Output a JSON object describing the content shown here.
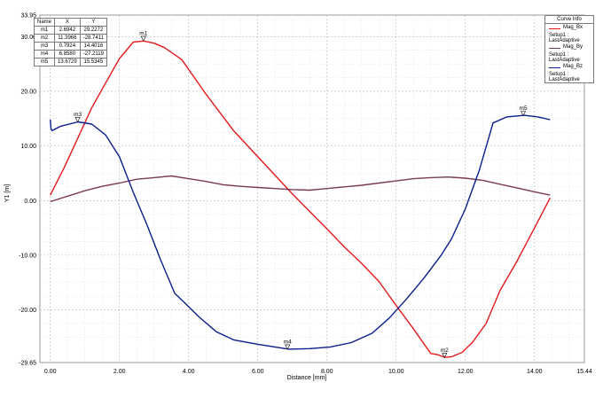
{
  "chart_data": {
    "type": "line",
    "xlabel": "Distance [mm]",
    "ylabel": "Y1 [m]",
    "xlim": [
      -0.3,
      15.44
    ],
    "ylim": [
      -29.65,
      33.95
    ],
    "x_ticks": [
      {
        "v": 0,
        "label": "0.00"
      },
      {
        "v": 2,
        "label": "2.00"
      },
      {
        "v": 4,
        "label": "4.00"
      },
      {
        "v": 6,
        "label": "6.00"
      },
      {
        "v": 8,
        "label": "8.00"
      },
      {
        "v": 10,
        "label": "10.00"
      },
      {
        "v": 12,
        "label": "12.00"
      },
      {
        "v": 14,
        "label": "14.00"
      },
      {
        "v": 15.44,
        "label": "15.44"
      }
    ],
    "y_ticks": [
      {
        "v": -29.65,
        "label": "-29.65"
      },
      {
        "v": -20,
        "label": "-20.00"
      },
      {
        "v": -10,
        "label": "-10.00"
      },
      {
        "v": 0,
        "label": "0.00"
      },
      {
        "v": 10,
        "label": "10.00"
      },
      {
        "v": 20,
        "label": "20.00"
      },
      {
        "v": 30,
        "label": "30.00"
      },
      {
        "v": 33.95,
        "label": "33.95"
      }
    ],
    "grid": true,
    "legend_position": "top-right",
    "series": [
      {
        "name": "Mag_Bx",
        "setup": "Setup1 : LastAdaptive",
        "color": "#e31a1c",
        "x": [
          0,
          0.4,
          0.8,
          1.2,
          1.6,
          2.0,
          2.4,
          2.7,
          3.0,
          3.3,
          3.8,
          4.5,
          5.3,
          6.0,
          6.5,
          7.0,
          7.5,
          8.0,
          8.5,
          9.0,
          9.5,
          10.0,
          10.5,
          11.0,
          11.2,
          11.4,
          11.6,
          11.9,
          12.2,
          12.6,
          13.0,
          13.5,
          14.0,
          14.45
        ],
        "y": [
          1.0,
          6.0,
          11.5,
          17.0,
          21.5,
          26.0,
          29.0,
          29.2,
          28.8,
          28.0,
          25.8,
          19.5,
          12.8,
          8.0,
          4.6,
          1.2,
          -2.0,
          -5.2,
          -8.5,
          -11.5,
          -14.8,
          -19.2,
          -23.5,
          -28.0,
          -28.2,
          -28.7,
          -28.6,
          -27.8,
          -26.0,
          -22.5,
          -16.5,
          -11.0,
          -5.0,
          0.5
        ]
      },
      {
        "name": "Mag_By",
        "setup": "Setup1 : LastAdaptive",
        "color": "#7b3a58",
        "x": [
          0,
          0.5,
          1.0,
          1.5,
          2.0,
          2.5,
          3.0,
          3.5,
          4.0,
          4.5,
          5.0,
          5.5,
          6.0,
          6.5,
          7.0,
          7.5,
          8.0,
          8.5,
          9.0,
          9.5,
          10.0,
          10.5,
          11.0,
          11.5,
          12.0,
          12.5,
          13.0,
          13.5,
          14.0,
          14.45
        ],
        "y": [
          -0.2,
          0.8,
          1.8,
          2.6,
          3.2,
          3.9,
          4.2,
          4.5,
          4.0,
          3.5,
          2.9,
          2.6,
          2.4,
          2.2,
          2.0,
          1.9,
          2.2,
          2.5,
          2.8,
          3.2,
          3.6,
          4.0,
          4.2,
          4.3,
          4.1,
          3.7,
          3.0,
          2.3,
          1.6,
          1.0
        ]
      },
      {
        "name": "Mag_Bz",
        "setup": "Setup1 : LastAdaptive",
        "color": "#0a1e8c",
        "x": [
          0,
          0.02,
          0.05,
          0.3,
          0.8,
          1.2,
          1.6,
          2.0,
          2.4,
          2.8,
          3.2,
          3.6,
          3.9,
          4.3,
          4.8,
          5.3,
          6.0,
          6.9,
          7.5,
          8.1,
          8.7,
          9.3,
          9.8,
          10.3,
          10.8,
          11.3,
          11.6,
          12.0,
          12.4,
          12.8,
          13.2,
          13.7,
          14.1,
          14.45
        ],
        "y": [
          14.8,
          13.2,
          12.8,
          13.6,
          14.4,
          14.0,
          12.0,
          8.0,
          1.5,
          -4.5,
          -11.0,
          -17.0,
          -18.8,
          -21.3,
          -24.0,
          -25.5,
          -26.3,
          -27.2,
          -27.1,
          -26.8,
          -26.0,
          -24.3,
          -21.5,
          -18.0,
          -14.2,
          -10.0,
          -7.0,
          -1.5,
          5.5,
          14.2,
          15.3,
          15.6,
          15.3,
          14.8
        ]
      }
    ],
    "marker_points": [
      {
        "name": "m1",
        "x": 2.6942,
        "y": 29.2272
      },
      {
        "name": "m2",
        "x": 11.3966,
        "y": -28.7411
      },
      {
        "name": "m3",
        "x": 0.7924,
        "y": 14.4016
      },
      {
        "name": "m4",
        "x": 6.858,
        "y": -27.2119
      },
      {
        "name": "m5",
        "x": 13.6729,
        "y": 15.5345
      }
    ]
  },
  "marker_table": {
    "headers": [
      "Name",
      "X",
      "Y"
    ],
    "rows": [
      [
        "m1",
        "2.6942",
        "29.2272"
      ],
      [
        "m2",
        "11.3966",
        "-28.7411"
      ],
      [
        "m3",
        "0.7924",
        "14.4016"
      ],
      [
        "m4",
        "6.8580",
        "-27.2119"
      ],
      [
        "m5",
        "13.6729",
        "15.5345"
      ]
    ]
  },
  "legend": {
    "title": "Curve Info"
  }
}
